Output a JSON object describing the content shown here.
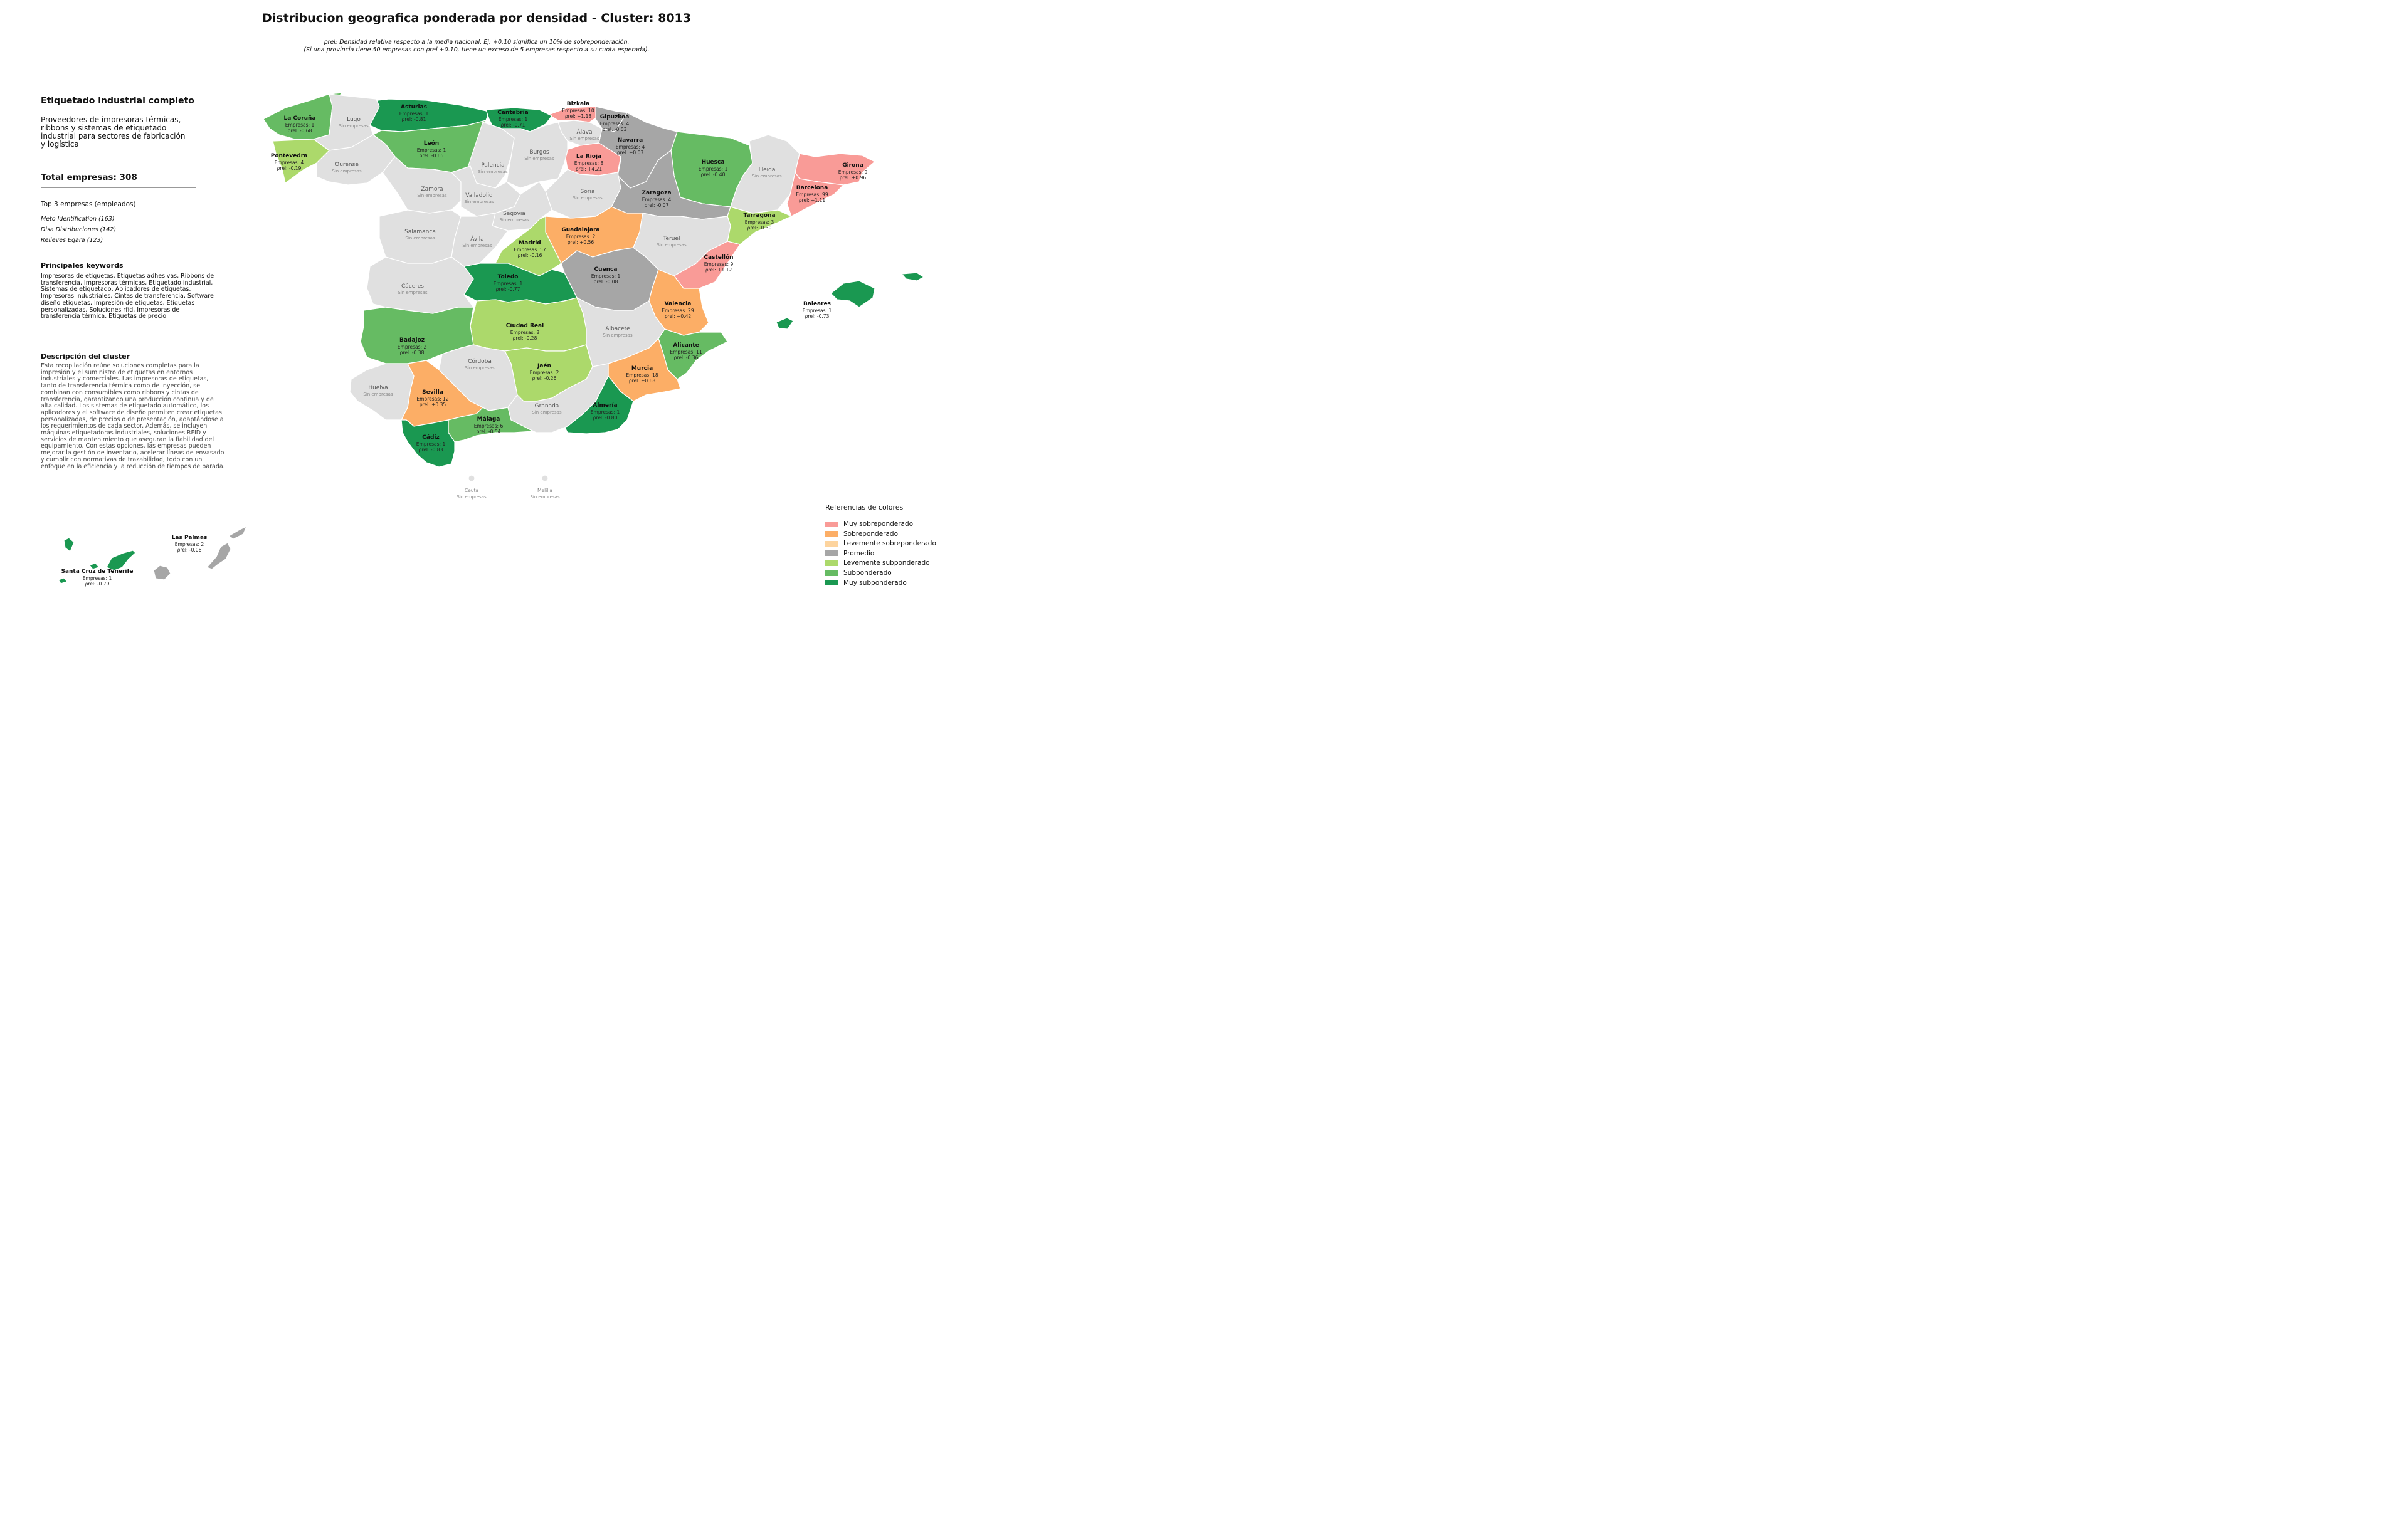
{
  "title": "Distribucion geografica ponderada por densidad - Cluster: 8013",
  "subtitle_line1": "ρrel: Densidad relativa respecto a la media nacional. Ej: +0.10 significa un 10% de sobreponderación.",
  "subtitle_line2": "(Si una provincia tiene 50 empresas con ρrel +0.10, tiene un exceso de 5 empresas respecto a su cuota esperada).",
  "panel": {
    "title": "Etiquetado industrial completo",
    "description": "Proveedores de impresoras térmicas, ribbons y sistemas de etiquetado industrial para sectores de fabricación y logística",
    "total": "Total empresas: 308",
    "top_heading": "Top 3 empresas (empleados)",
    "top_companies": [
      "Meto Identification (163)",
      "Disa Distribuciones (142)",
      "Relieves Egara (123)"
    ],
    "keywords_heading": "Principales keywords",
    "keywords": "Impresoras de etiquetas, Etiquetas adhesivas, Ribbons de transferencia, Impresoras térmicas, Etiquetado industrial, Sistemas de etiquetado, Aplicadores de etiquetas, Impresoras industriales, Cintas de transferencia, Software diseño etiquetas, Impresión de etiquetas, Etiquetas personalizadas, Soluciones rfid, Impresoras de transferencia térmica, Etiquetas de precio",
    "cluster_heading": "Descripción del cluster",
    "cluster_description": "Esta recopilación reúne soluciones completas para la impresión y el suministro de etiquetas en entornos industriales y comerciales. Las impresoras de etiquetas, tanto de transferencia térmica como de inyección, se combinan con consumibles como ribbons y cintas de transferencia, garantizando una producción continua y de alta calidad. Los sistemas de etiquetado automático, los aplicadores y el software de diseño permiten crear etiquetas personalizadas, de precios o de presentación, adaptándose a los requerimientos de cada sector. Además, se incluyen máquinas etiquetadoras industriales, soluciones RFID y servicios de mantenimiento que aseguran la fiabilidad del equipamiento. Con estas opciones, las empresas pueden mejorar la gestión de inventario, acelerar líneas de envasado y cumplir con normativas de trazabilidad, todo con un enfoque en la eficiencia y la reducción de tiempos de parada."
  },
  "colors": {
    "muy_sobre": "#f99b97",
    "sobre": "#fcae66",
    "lev_sobre": "#fdd49e",
    "promedio": "#a6a6a6",
    "lev_sub": "#acd96b",
    "sub": "#66bb63",
    "muy_sub": "#1a9851",
    "sin": "#e0e0e0"
  },
  "legend": {
    "title": "Referencias de colores",
    "items": [
      {
        "label": "Muy sobreponderado",
        "color": "#f99b97"
      },
      {
        "label": "Sobreponderado",
        "color": "#fcae66"
      },
      {
        "label": "Levemente sobreponderado",
        "color": "#fdd49e"
      },
      {
        "label": "Promedio",
        "color": "#a6a6a6"
      },
      {
        "label": "Levemente subponderado",
        "color": "#acd96b"
      },
      {
        "label": "Subponderado",
        "color": "#66bb63"
      },
      {
        "label": "Muy subponderado",
        "color": "#1a9851"
      }
    ]
  },
  "no_companies_label": "Sin empresas",
  "provinces": [
    {
      "name": "Bizkaia",
      "empresas": "Empresas: 10",
      "rho": "ρrel: +1.18",
      "cat": "muy_sobre"
    },
    {
      "name": "Asturias",
      "empresas": "Empresas: 1",
      "rho": "ρrel: -0.81",
      "cat": "muy_sub"
    },
    {
      "name": "Cantabria",
      "empresas": "Empresas: 1",
      "rho": "ρrel: -0.71",
      "cat": "muy_sub"
    },
    {
      "name": "Gipuzkoa",
      "empresas": "Empresas: 4",
      "rho": "ρrel: -0.03",
      "cat": "promedio"
    },
    {
      "name": "La Coruña",
      "empresas": "Empresas: 1",
      "rho": "ρrel: -0.68",
      "cat": "sub"
    },
    {
      "name": "Navarra",
      "empresas": "Empresas: 4",
      "rho": "ρrel: +0.03",
      "cat": "promedio"
    },
    {
      "name": "León",
      "empresas": "Empresas: 1",
      "rho": "ρrel: -0.65",
      "cat": "sub"
    },
    {
      "name": "La Rioja",
      "empresas": "Empresas: 8",
      "rho": "ρrel: +4.21",
      "cat": "muy_sobre"
    },
    {
      "name": "Pontevedra",
      "empresas": "Empresas: 4",
      "rho": "ρrel: -0.19",
      "cat": "lev_sub"
    },
    {
      "name": "Huesca",
      "empresas": "Empresas: 1",
      "rho": "ρrel: -0.40",
      "cat": "sub"
    },
    {
      "name": "Girona",
      "empresas": "Empresas: 9",
      "rho": "ρrel: +0.96",
      "cat": "muy_sobre"
    },
    {
      "name": "Barcelona",
      "empresas": "Empresas: 99",
      "rho": "ρrel: +1.11",
      "cat": "muy_sobre"
    },
    {
      "name": "Zaragoza",
      "empresas": "Empresas: 4",
      "rho": "ρrel: -0.07",
      "cat": "promedio"
    },
    {
      "name": "Tarragona",
      "empresas": "Empresas: 3",
      "rho": "ρrel: -0.30",
      "cat": "lev_sub"
    },
    {
      "name": "Guadalajara",
      "empresas": "Empresas: 2",
      "rho": "ρrel: +0.56",
      "cat": "sobre"
    },
    {
      "name": "Madrid",
      "empresas": "Empresas: 57",
      "rho": "ρrel: -0.16",
      "cat": "lev_sub"
    },
    {
      "name": "Castellón",
      "empresas": "Empresas: 9",
      "rho": "ρrel: +1.12",
      "cat": "muy_sobre"
    },
    {
      "name": "Cuenca",
      "empresas": "Empresas: 1",
      "rho": "ρrel: -0.08",
      "cat": "promedio"
    },
    {
      "name": "Toledo",
      "empresas": "Empresas: 1",
      "rho": "ρrel: -0.77",
      "cat": "muy_sub"
    },
    {
      "name": "Valencia",
      "empresas": "Empresas: 29",
      "rho": "ρrel: +0.42",
      "cat": "sobre"
    },
    {
      "name": "Baleares",
      "empresas": "Empresas: 1",
      "rho": "ρrel: -0.73",
      "cat": "muy_sub"
    },
    {
      "name": "Ciudad Real",
      "empresas": "Empresas: 2",
      "rho": "ρrel: -0.28",
      "cat": "lev_sub"
    },
    {
      "name": "Badajoz",
      "empresas": "Empresas: 2",
      "rho": "ρrel: -0.38",
      "cat": "sub"
    },
    {
      "name": "Alicante",
      "empresas": "Empresas: 11",
      "rho": "ρrel: -0.36",
      "cat": "sub"
    },
    {
      "name": "Jaén",
      "empresas": "Empresas: 2",
      "rho": "ρrel: -0.26",
      "cat": "lev_sub"
    },
    {
      "name": "Murcia",
      "empresas": "Empresas: 18",
      "rho": "ρrel: +0.68",
      "cat": "sobre"
    },
    {
      "name": "Sevilla",
      "empresas": "Empresas: 12",
      "rho": "ρrel: +0.35",
      "cat": "sobre"
    },
    {
      "name": "Almería",
      "empresas": "Empresas: 1",
      "rho": "ρrel: -0.80",
      "cat": "muy_sub"
    },
    {
      "name": "Málaga",
      "empresas": "Empresas: 6",
      "rho": "ρrel: -0.54",
      "cat": "sub"
    },
    {
      "name": "Cádiz",
      "empresas": "Empresas: 1",
      "rho": "ρrel: -0.83",
      "cat": "muy_sub"
    },
    {
      "name": "Las Palmas",
      "empresas": "Empresas: 2",
      "rho": "ρrel: -0.06",
      "cat": "promedio"
    },
    {
      "name": "Santa Cruz de Tenerife",
      "empresas": "Empresas: 1",
      "rho": "ρrel: -0.79",
      "cat": "muy_sub"
    }
  ],
  "provinces_sin": [
    "Lugo",
    "Álava",
    "Ourense",
    "Burgos",
    "Palencia",
    "Lleida",
    "Zamora",
    "Valladolid",
    "Soria",
    "Segovia",
    "Salamanca",
    "Teruel",
    "Ávila",
    "Cáceres",
    "Albacete",
    "Córdoba",
    "Huelva",
    "Granada",
    "Ceuta",
    "Melilla"
  ]
}
